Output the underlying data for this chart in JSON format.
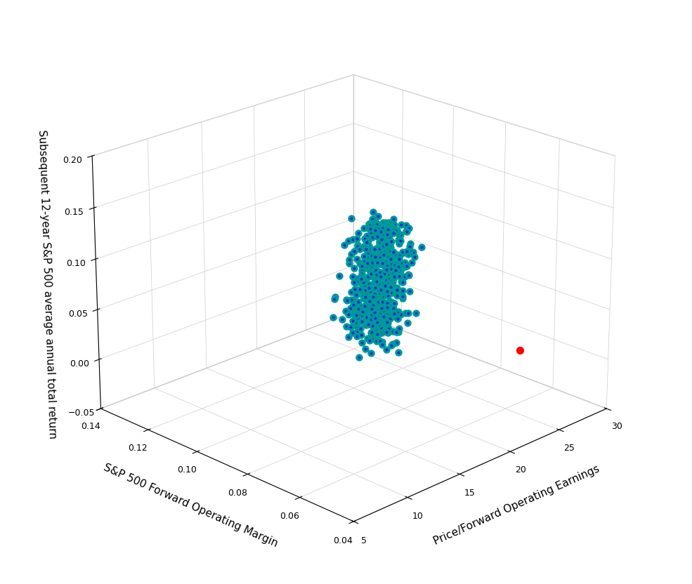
{
  "xlabel": "Price/Forward Operating Earnings",
  "ylabel": "S&P 500 Forward Operating Margin",
  "zlabel": "Subsequent 12-year S&P 500 average annual total return",
  "xlim": [
    5,
    30
  ],
  "ylim": [
    0.04,
    0.14
  ],
  "zlim": [
    -0.05,
    0.2
  ],
  "xticks": [
    5,
    10,
    15,
    20,
    25,
    30
  ],
  "yticks": [
    0.04,
    0.06,
    0.08,
    0.1,
    0.12,
    0.14
  ],
  "zticks": [
    -0.05,
    0,
    0.05,
    0.1,
    0.15,
    0.2
  ],
  "dot_color": "#0033CC",
  "edge_color": "#009999",
  "red_dot_color": "#FF0000",
  "dot_size": 28,
  "edge_width": 2.2,
  "background_color": "#ffffff",
  "grid_color": "#cccccc",
  "seed": 42,
  "n_points": 480,
  "elev": 22,
  "azim": -135
}
